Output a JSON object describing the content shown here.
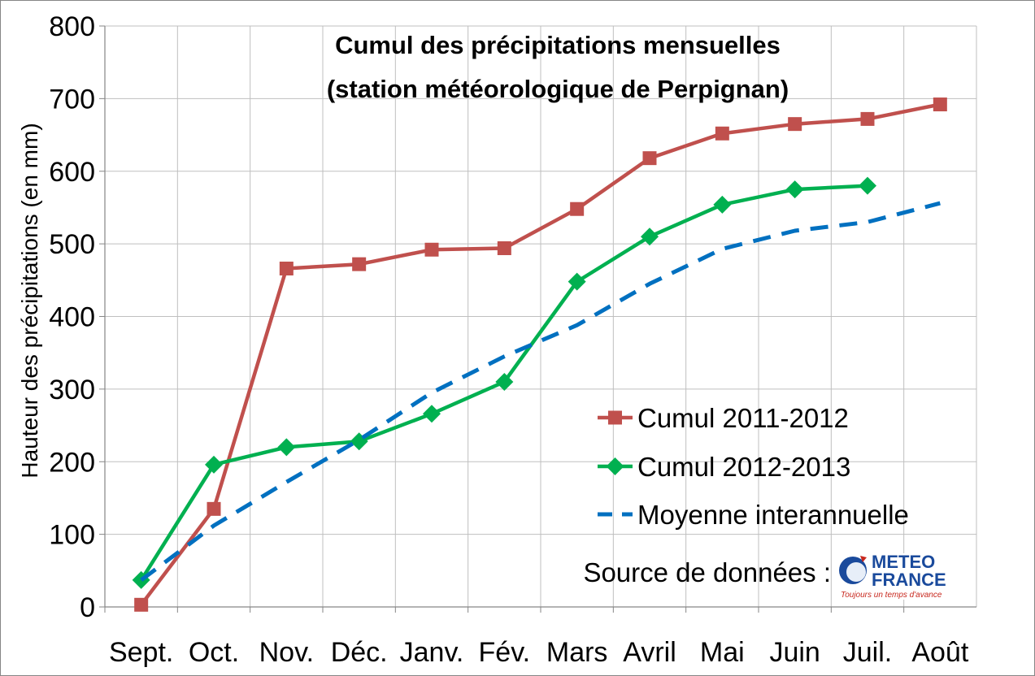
{
  "chart_data": {
    "type": "line",
    "title_line1": "Cumul des précipitations mensuelles",
    "title_line2": "(station météorologique de Perpignan)",
    "xlabel": "",
    "ylabel": "Hauteur des précipitations (en mm)",
    "ylim": [
      0,
      800
    ],
    "yticks": [
      0,
      100,
      200,
      300,
      400,
      500,
      600,
      700,
      800
    ],
    "grid": "on",
    "legend_position": "bottom-right",
    "categories": [
      "Sept.",
      "Oct.",
      "Nov.",
      "Déc.",
      "Janv.",
      "Fév.",
      "Mars",
      "Avril",
      "Mai",
      "Juin",
      "Juil.",
      "Août"
    ],
    "series": [
      {
        "name": "Cumul 2011-2012",
        "color": "#c0504d",
        "marker": "square",
        "dashed": false,
        "values": [
          3,
          135,
          466,
          472,
          492,
          494,
          548,
          618,
          652,
          665,
          672,
          692
        ]
      },
      {
        "name": "Cumul 2012-2013",
        "color": "#00b050",
        "marker": "diamond",
        "dashed": false,
        "values": [
          37,
          196,
          220,
          228,
          266,
          310,
          448,
          510,
          554,
          575,
          580,
          null
        ]
      },
      {
        "name": "Moyenne interannuelle",
        "color": "#0070c0",
        "marker": "none",
        "dashed": true,
        "values": [
          37,
          112,
          172,
          230,
          295,
          345,
          388,
          445,
          493,
          518,
          530,
          556
        ]
      }
    ],
    "source_label": "Source de données :",
    "logo": {
      "line1": "METEO",
      "line2": "FRANCE",
      "tagline": "Toujours un temps d'avance"
    }
  }
}
